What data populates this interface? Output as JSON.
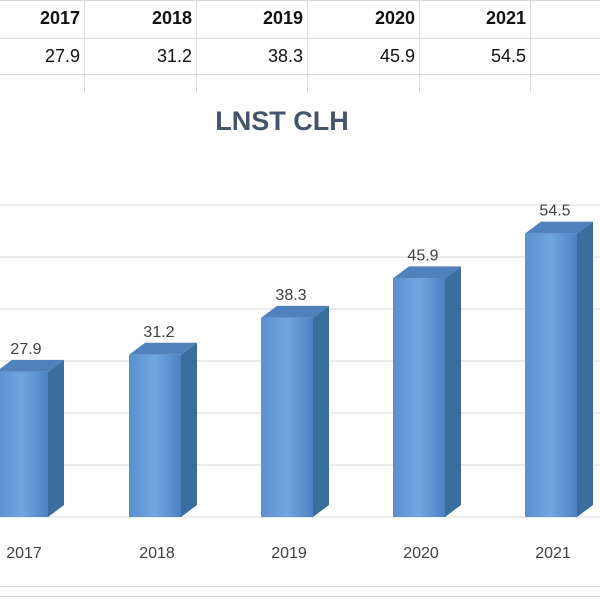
{
  "sheet": {
    "years": [
      "2017",
      "2018",
      "2019",
      "2020",
      "2021"
    ],
    "values": [
      "27.9",
      "31.2",
      "38.3",
      "45.9",
      "54.5"
    ]
  },
  "chart_data": {
    "type": "bar",
    "title": "LNST CLH",
    "categories": [
      "2017",
      "2018",
      "2019",
      "2020",
      "2021"
    ],
    "values": [
      27.9,
      31.2,
      38.3,
      45.9,
      54.5
    ],
    "data_labels": [
      "27.9",
      "31.2",
      "38.3",
      "45.9",
      "54.5"
    ],
    "xlabel": "",
    "ylabel": "",
    "ylim": [
      0,
      60
    ],
    "grid": true,
    "bar_color": "#5b9bd5",
    "bar_side_color": "#3a6e9e",
    "bar_top_color": "#4f81bd"
  }
}
